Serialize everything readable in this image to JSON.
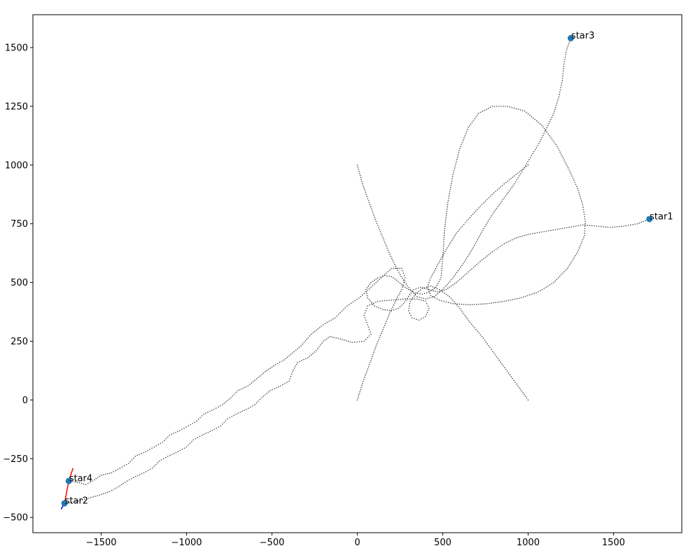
{
  "chart_data": {
    "type": "scatter",
    "title": "",
    "xlabel": "",
    "ylabel": "",
    "xlim": [
      -1900,
      1900
    ],
    "ylim": [
      -565,
      1640
    ],
    "xticks": [
      -1500,
      -1000,
      -500,
      0,
      500,
      1000,
      1500
    ],
    "yticks": [
      -500,
      -250,
      0,
      250,
      500,
      750,
      1000,
      1250,
      1500
    ],
    "xtick_labels": [
      "−1500",
      "−1000",
      "−500",
      "0",
      "500",
      "1000",
      "1500"
    ],
    "ytick_labels": [
      "−500",
      "−250",
      "0",
      "250",
      "500",
      "750",
      "1000",
      "1250",
      "1500"
    ],
    "grid": false,
    "colors": {
      "marker": "#1f77b4",
      "trail": "#444444",
      "velocity_red": "#ff0000",
      "velocity_blue": "#0000ff"
    },
    "stars": [
      {
        "name": "star1",
        "x": 1710,
        "y": 770
      },
      {
        "name": "star2",
        "x": -1715,
        "y": -440
      },
      {
        "name": "star3",
        "x": 1250,
        "y": 1540
      },
      {
        "name": "star4",
        "x": -1690,
        "y": -345
      }
    ],
    "trajectories": [
      {
        "name": "star1",
        "points": [
          [
            1000,
            1000
          ],
          [
            930,
            960
          ],
          [
            860,
            920
          ],
          [
            790,
            875
          ],
          [
            720,
            825
          ],
          [
            650,
            770
          ],
          [
            580,
            710
          ],
          [
            520,
            640
          ],
          [
            470,
            575
          ],
          [
            430,
            520
          ],
          [
            410,
            480
          ],
          [
            430,
            445
          ],
          [
            480,
            425
          ],
          [
            560,
            410
          ],
          [
            660,
            405
          ],
          [
            760,
            410
          ],
          [
            860,
            420
          ],
          [
            960,
            435
          ],
          [
            1060,
            460
          ],
          [
            1150,
            500
          ],
          [
            1230,
            560
          ],
          [
            1290,
            630
          ],
          [
            1330,
            700
          ],
          [
            1335,
            760
          ],
          [
            1320,
            830
          ],
          [
            1290,
            900
          ],
          [
            1240,
            980
          ],
          [
            1170,
            1080
          ],
          [
            1080,
            1170
          ],
          [
            980,
            1230
          ],
          [
            880,
            1250
          ],
          [
            790,
            1250
          ],
          [
            710,
            1220
          ],
          [
            650,
            1160
          ],
          [
            600,
            1070
          ],
          [
            560,
            960
          ],
          [
            530,
            840
          ],
          [
            510,
            720
          ],
          [
            500,
            600
          ],
          [
            490,
            520
          ],
          [
            460,
            480
          ],
          [
            420,
            460
          ],
          [
            380,
            450
          ],
          [
            340,
            455
          ],
          [
            300,
            470
          ],
          [
            260,
            490
          ],
          [
            230,
            510
          ],
          [
            200,
            525
          ],
          [
            160,
            530
          ],
          [
            120,
            520
          ],
          [
            80,
            500
          ],
          [
            50,
            470
          ],
          [
            60,
            435
          ],
          [
            100,
            400
          ],
          [
            150,
            385
          ],
          [
            200,
            380
          ],
          [
            240,
            390
          ],
          [
            270,
            410
          ],
          [
            300,
            440
          ],
          [
            330,
            470
          ],
          [
            370,
            480
          ],
          [
            420,
            470
          ],
          [
            470,
            460
          ],
          [
            520,
            470
          ],
          [
            580,
            500
          ],
          [
            650,
            545
          ],
          [
            720,
            590
          ],
          [
            790,
            630
          ],
          [
            860,
            665
          ],
          [
            930,
            690
          ],
          [
            1000,
            705
          ],
          [
            1080,
            715
          ],
          [
            1160,
            725
          ],
          [
            1240,
            735
          ],
          [
            1320,
            745
          ],
          [
            1400,
            740
          ],
          [
            1480,
            735
          ],
          [
            1560,
            740
          ],
          [
            1640,
            750
          ],
          [
            1710,
            770
          ]
        ]
      },
      {
        "name": "star2",
        "points": [
          [
            1000,
            0
          ],
          [
            940,
            60
          ],
          [
            870,
            130
          ],
          [
            800,
            200
          ],
          [
            730,
            270
          ],
          [
            660,
            330
          ],
          [
            600,
            390
          ],
          [
            540,
            440
          ],
          [
            480,
            470
          ],
          [
            430,
            485
          ],
          [
            380,
            475
          ],
          [
            340,
            450
          ],
          [
            310,
            420
          ],
          [
            300,
            380
          ],
          [
            320,
            350
          ],
          [
            360,
            340
          ],
          [
            400,
            355
          ],
          [
            420,
            390
          ],
          [
            400,
            420
          ],
          [
            350,
            430
          ],
          [
            280,
            430
          ],
          [
            200,
            425
          ],
          [
            120,
            420
          ],
          [
            60,
            400
          ],
          [
            40,
            360
          ],
          [
            60,
            320
          ],
          [
            80,
            280
          ],
          [
            40,
            250
          ],
          [
            -30,
            245
          ],
          [
            -100,
            260
          ],
          [
            -160,
            270
          ],
          [
            -200,
            250
          ],
          [
            -240,
            210
          ],
          [
            -290,
            180
          ],
          [
            -350,
            160
          ],
          [
            -380,
            120
          ],
          [
            -400,
            80
          ],
          [
            -450,
            60
          ],
          [
            -510,
            40
          ],
          [
            -560,
            10
          ],
          [
            -600,
            -20
          ],
          [
            -650,
            -40
          ],
          [
            -710,
            -60
          ],
          [
            -760,
            -80
          ],
          [
            -800,
            -110
          ],
          [
            -850,
            -130
          ],
          [
            -910,
            -150
          ],
          [
            -960,
            -170
          ],
          [
            -1000,
            -200
          ],
          [
            -1050,
            -220
          ],
          [
            -1110,
            -240
          ],
          [
            -1160,
            -260
          ],
          [
            -1200,
            -290
          ],
          [
            -1250,
            -310
          ],
          [
            -1310,
            -330
          ],
          [
            -1360,
            -350
          ],
          [
            -1400,
            -370
          ],
          [
            -1450,
            -390
          ],
          [
            -1510,
            -405
          ],
          [
            -1560,
            -415
          ],
          [
            -1610,
            -425
          ],
          [
            -1660,
            -435
          ],
          [
            -1715,
            -440
          ]
        ]
      },
      {
        "name": "star3",
        "points": [
          [
            0,
            1000
          ],
          [
            30,
            920
          ],
          [
            70,
            840
          ],
          [
            110,
            760
          ],
          [
            150,
            690
          ],
          [
            190,
            620
          ],
          [
            230,
            560
          ],
          [
            270,
            510
          ],
          [
            310,
            470
          ],
          [
            350,
            440
          ],
          [
            400,
            430
          ],
          [
            450,
            440
          ],
          [
            500,
            470
          ],
          [
            560,
            520
          ],
          [
            620,
            580
          ],
          [
            680,
            650
          ],
          [
            740,
            730
          ],
          [
            800,
            800
          ],
          [
            860,
            860
          ],
          [
            920,
            920
          ],
          [
            970,
            980
          ],
          [
            1020,
            1040
          ],
          [
            1070,
            1100
          ],
          [
            1110,
            1160
          ],
          [
            1150,
            1220
          ],
          [
            1180,
            1290
          ],
          [
            1200,
            1360
          ],
          [
            1210,
            1430
          ],
          [
            1225,
            1490
          ],
          [
            1250,
            1540
          ]
        ]
      },
      {
        "name": "star4",
        "points": [
          [
            0,
            0
          ],
          [
            30,
            70
          ],
          [
            70,
            150
          ],
          [
            110,
            230
          ],
          [
            150,
            300
          ],
          [
            190,
            370
          ],
          [
            230,
            430
          ],
          [
            260,
            470
          ],
          [
            280,
            520
          ],
          [
            260,
            560
          ],
          [
            200,
            560
          ],
          [
            140,
            520
          ],
          [
            80,
            480
          ],
          [
            20,
            440
          ],
          [
            -60,
            400
          ],
          [
            -130,
            350
          ],
          [
            -200,
            320
          ],
          [
            -270,
            280
          ],
          [
            -330,
            230
          ],
          [
            -380,
            200
          ],
          [
            -430,
            170
          ],
          [
            -480,
            150
          ],
          [
            -540,
            120
          ],
          [
            -590,
            90
          ],
          [
            -640,
            60
          ],
          [
            -700,
            40
          ],
          [
            -740,
            10
          ],
          [
            -790,
            -20
          ],
          [
            -840,
            -40
          ],
          [
            -900,
            -60
          ],
          [
            -940,
            -90
          ],
          [
            -990,
            -110
          ],
          [
            -1040,
            -130
          ],
          [
            -1100,
            -150
          ],
          [
            -1140,
            -180
          ],
          [
            -1190,
            -200
          ],
          [
            -1240,
            -220
          ],
          [
            -1300,
            -240
          ],
          [
            -1340,
            -270
          ],
          [
            -1390,
            -290
          ],
          [
            -1440,
            -310
          ],
          [
            -1500,
            -320
          ],
          [
            -1540,
            -340
          ],
          [
            -1590,
            -360
          ],
          [
            -1640,
            -350
          ],
          [
            -1690,
            -345
          ]
        ]
      }
    ],
    "velocity_vectors": [
      {
        "color": "red",
        "from": [
          -1690,
          -345
        ],
        "to": [
          -1665,
          -290
        ]
      },
      {
        "color": "red",
        "from": [
          -1690,
          -345
        ],
        "to": [
          -1715,
          -440
        ]
      },
      {
        "color": "blue",
        "from": [
          -1715,
          -440
        ],
        "to": [
          -1735,
          -465
        ]
      }
    ]
  }
}
